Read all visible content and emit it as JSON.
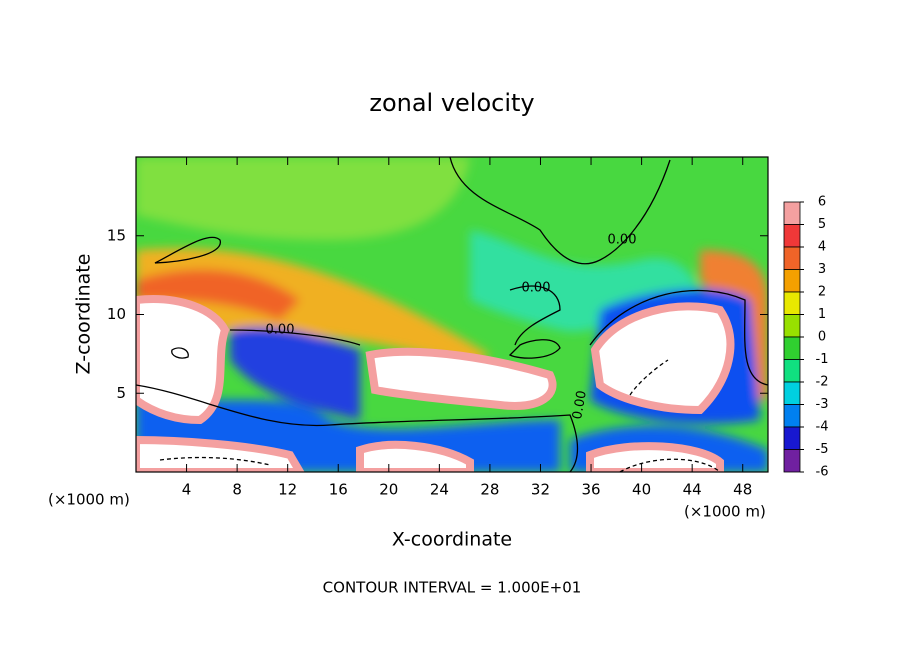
{
  "chart_data": {
    "type": "contour",
    "title": "zonal velocity",
    "x_label": "X-coordinate",
    "y_label": "Z-coordinate",
    "x_unit": "(×1000 m)",
    "y_unit": "(×1000 m)",
    "xlim": [
      0,
      50
    ],
    "xticks": [
      4,
      8,
      12,
      16,
      20,
      24,
      28,
      32,
      36,
      40,
      44,
      48
    ],
    "ylim": [
      0,
      20
    ],
    "yticks": [
      5,
      10,
      15
    ],
    "contour_levels": [
      {
        "value": 0,
        "label": "0.00"
      }
    ],
    "footer": "CONTOUR INTERVAL = 1.000E+01",
    "colorbar": {
      "levels": [
        6,
        5,
        4,
        3,
        2,
        1,
        0,
        -1,
        -2,
        -3,
        -4,
        -5,
        -6
      ],
      "colors": [
        "#f4a0a0",
        "#f03838",
        "#f06428",
        "#f4a000",
        "#e8e800",
        "#98e000",
        "#30d030",
        "#10e080",
        "#00d0e0",
        "#0080f0",
        "#1818d0",
        "#7020a0"
      ]
    }
  }
}
